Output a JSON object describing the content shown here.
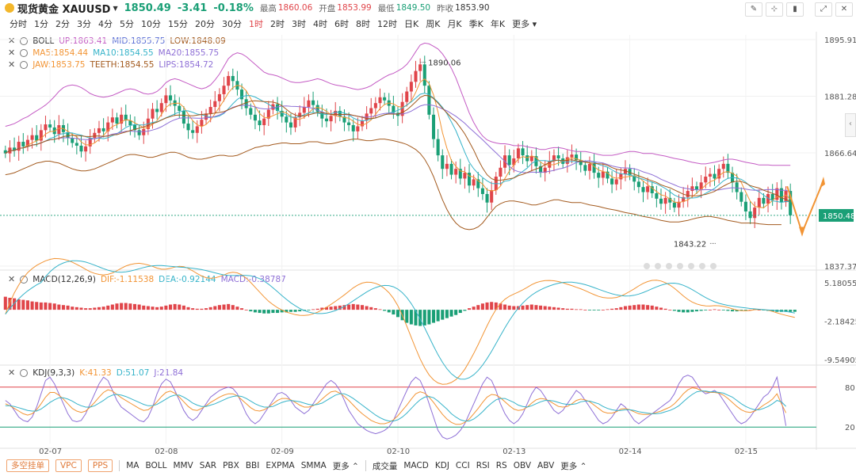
{
  "header": {
    "title": "现货黄金 XAUUSD",
    "price": "1850.49",
    "change": "-3.41",
    "change_pct": "-0.18%",
    "high_label": "最高",
    "high": "1860.06",
    "open_label": "开盘",
    "open": "1853.99",
    "low_label": "最低",
    "low": "1849.50",
    "prev_label": "昨收",
    "prev": "1853.90"
  },
  "timeframes": [
    "分时",
    "1分",
    "2分",
    "3分",
    "4分",
    "5分",
    "10分",
    "15分",
    "20分",
    "30分",
    "1时",
    "2时",
    "3时",
    "4时",
    "6时",
    "8时",
    "12时",
    "日K",
    "周K",
    "月K",
    "季K",
    "年K",
    "更多"
  ],
  "active_timeframe": "1时",
  "legend": {
    "boll": {
      "name": "BOLL",
      "up": "UP:1863.41",
      "mid": "MID:1855.75",
      "low": "LOW:1848.09"
    },
    "ma": {
      "ma5": "MA5:1854.44",
      "ma10": "MA10:1854.55",
      "ma20": "MA20:1855.75"
    },
    "alligator": {
      "jaw": "JAW:1853.75",
      "teeth": "TEETH:1854.55",
      "lips": "LIPS:1854.72"
    },
    "macd": {
      "name": "MACD(12,26,9)",
      "dif": "DIF:-1.11538",
      "dea": "DEA:-0.92144",
      "macd": "MACD:-0.38787"
    },
    "kdj": {
      "name": "KDJ(9,3,3)",
      "k": "K:41.33",
      "d": "D:51.07",
      "j": "J:21.84"
    }
  },
  "colors": {
    "up": "#e0454a",
    "down": "#1a9f76",
    "boll": "#c45bc4",
    "mid": "#5b6fd6",
    "lowband": "#a35a1e",
    "ma5": "#f29434",
    "ma10": "#36b3c9",
    "ma20": "#8e6fd6",
    "jaw": "#a35a1e",
    "teeth": "#c0a010",
    "lips": "#8e6fd6"
  },
  "chart_data": {
    "type": "candlestick",
    "y_ticks": [
      "1895.91",
      "1881.28",
      "1866.64",
      "1837.37"
    ],
    "ylim": [
      1837.37,
      1895.91
    ],
    "current_price_label": "1850.48",
    "current_price": 1850.48,
    "annotations": [
      {
        "text": "1890.06",
        "value": 1890.06
      },
      {
        "text": "1843.22",
        "value": 1843.22
      }
    ],
    "x_labels": [
      "02-07",
      "02-08",
      "02-09",
      "02-10",
      "02-13",
      "02-14",
      "02-15"
    ],
    "close": [
      1866.5,
      1868.0,
      1867.2,
      1869.5,
      1868.3,
      1870.0,
      1871.2,
      1869.8,
      1872.5,
      1874.0,
      1873.2,
      1871.5,
      1873.8,
      1872.0,
      1870.5,
      1869.2,
      1868.5,
      1867.0,
      1868.3,
      1870.5,
      1871.8,
      1873.0,
      1872.2,
      1874.5,
      1875.8,
      1874.2,
      1876.5,
      1875.0,
      1873.8,
      1872.5,
      1871.2,
      1872.8,
      1875.5,
      1878.0,
      1877.2,
      1879.5,
      1881.5,
      1880.2,
      1878.8,
      1877.5,
      1874.2,
      1872.5,
      1871.8,
      1873.5,
      1875.2,
      1876.8,
      1878.5,
      1880.0,
      1881.8,
      1884.0,
      1886.5,
      1885.2,
      1883.0,
      1880.5,
      1878.2,
      1876.5,
      1875.0,
      1873.8,
      1875.5,
      1877.8,
      1879.2,
      1877.5,
      1876.0,
      1874.5,
      1873.2,
      1875.8,
      1877.0,
      1878.5,
      1880.2,
      1879.0,
      1877.2,
      1875.5,
      1874.8,
      1876.2,
      1877.5,
      1876.0,
      1874.5,
      1873.8,
      1872.2,
      1873.5,
      1875.0,
      1876.8,
      1878.2,
      1879.5,
      1881.0,
      1880.2,
      1878.8,
      1877.0,
      1876.2,
      1879.8,
      1882.5,
      1885.0,
      1887.8,
      1889.5,
      1884.0,
      1876.5,
      1870.2,
      1866.0,
      1862.5,
      1863.8,
      1861.0,
      1862.5,
      1860.0,
      1861.5,
      1858.2,
      1859.8,
      1857.5,
      1856.0,
      1853.8,
      1857.0,
      1860.5,
      1862.8,
      1866.0,
      1863.5,
      1865.2,
      1867.8,
      1866.0,
      1864.5,
      1865.8,
      1863.2,
      1861.5,
      1862.8,
      1864.5,
      1866.0,
      1865.2,
      1863.8,
      1865.5,
      1866.2,
      1864.8,
      1863.5,
      1862.0,
      1863.8,
      1861.5,
      1860.2,
      1861.8,
      1860.0,
      1858.5,
      1859.8,
      1861.2,
      1862.5,
      1860.8,
      1859.2,
      1857.8,
      1856.5,
      1858.0,
      1856.2,
      1854.8,
      1853.5,
      1855.0,
      1853.8,
      1852.5,
      1854.0,
      1855.2,
      1856.8,
      1858.0,
      1857.2,
      1859.0,
      1860.5,
      1861.2,
      1860.0,
      1862.5,
      1863.8,
      1861.5,
      1859.0,
      1856.5,
      1854.0,
      1851.5,
      1849.8,
      1852.5,
      1855.0,
      1853.5,
      1856.0,
      1854.5,
      1857.5,
      1853.9,
      1856.8,
      1850.5
    ],
    "boll_up": [
      1873.5,
      1873.8,
      1874.2,
      1874.8,
      1875.5,
      1876.0,
      1876.8,
      1877.5,
      1878.2,
      1879.0,
      1880.0,
      1881.2,
      1882.5,
      1883.5,
      1884.0,
      1884.2,
      1884.0,
      1883.5,
      1882.8,
      1882.0,
      1881.5,
      1881.2,
      1881.0,
      1881.2,
      1881.5,
      1882.0,
      1882.5,
      1883.0,
      1883.2,
      1883.0,
      1882.5,
      1882.0,
      1881.8,
      1882.0,
      1882.5,
      1883.5,
      1884.8,
      1885.5,
      1885.8,
      1885.5,
      1885.0,
      1884.5,
      1884.0,
      1883.5,
      1883.2,
      1883.5,
      1884.2,
      1885.5,
      1887.0,
      1889.0,
      1891.0,
      1892.0,
      1892.5,
      1892.2,
      1891.5,
      1890.5,
      1889.5,
      1888.5,
      1887.5,
      1887.0,
      1886.8,
      1886.5,
      1886.0,
      1885.5,
      1885.0,
      1884.8,
      1884.8,
      1885.0,
      1885.2,
      1885.5,
      1885.8,
      1885.5,
      1885.0,
      1884.5,
      1884.2,
      1884.0,
      1883.8,
      1883.5,
      1883.2,
      1883.0,
      1883.2,
      1883.5,
      1884.0,
      1884.8,
      1885.5,
      1886.2,
      1886.8,
      1887.2,
      1887.8,
      1888.5,
      1889.5,
      1891.0,
      1892.8,
      1894.5,
      1895.0,
      1894.8,
      1894.2,
      1893.5,
      1892.2,
      1890.5,
      1888.5,
      1886.0,
      1883.0,
      1880.0,
      1877.0,
      1874.5,
      1872.5,
      1871.0,
      1870.0,
      1869.5,
      1869.2,
      1869.0,
      1869.0,
      1868.8,
      1868.5,
      1868.5,
      1868.5,
      1868.2,
      1868.0,
      1867.8,
      1867.5,
      1867.5,
      1867.8,
      1868.0,
      1868.0,
      1867.8,
      1867.5,
      1867.2,
      1867.0,
      1867.0,
      1867.0,
      1866.8,
      1866.5,
      1866.2,
      1866.0,
      1866.0,
      1866.0,
      1866.2,
      1866.5,
      1866.8,
      1867.0,
      1867.0,
      1866.8,
      1866.5,
      1866.5,
      1866.5,
      1866.2,
      1866.0,
      1865.8,
      1865.5,
      1865.2,
      1865.0,
      1864.8,
      1864.5,
      1864.2,
      1864.0,
      1863.8,
      1863.8,
      1864.0,
      1864.2,
      1864.5,
      1864.8,
      1865.0,
      1865.0,
      1864.8,
      1864.5,
      1864.2,
      1864.0,
      1863.8,
      1863.5,
      1863.5,
      1863.5,
      1863.4,
      1863.4,
      1863.4,
      1863.4,
      1863.4
    ],
    "boll_low": [
      1861.0,
      1861.2,
      1861.5,
      1862.0,
      1862.5,
      1863.0,
      1863.5,
      1864.0,
      1864.2,
      1864.5,
      1864.5,
      1864.2,
      1864.0,
      1863.5,
      1863.0,
      1862.5,
      1862.2,
      1862.0,
      1862.0,
      1862.2,
      1862.5,
      1863.0,
      1863.5,
      1864.0,
      1864.5,
      1865.0,
      1865.5,
      1866.0,
      1866.2,
      1866.2,
      1866.0,
      1865.8,
      1865.5,
      1865.5,
      1865.8,
      1866.2,
      1866.5,
      1866.8,
      1866.8,
      1866.5,
      1866.0,
      1865.5,
      1865.2,
      1865.0,
      1865.0,
      1865.2,
      1865.5,
      1865.8,
      1866.0,
      1866.0,
      1865.8,
      1865.8,
      1866.0,
      1866.5,
      1867.0,
      1867.5,
      1868.0,
      1868.2,
      1868.5,
      1868.5,
      1868.8,
      1869.0,
      1869.2,
      1869.2,
      1869.0,
      1869.0,
      1869.0,
      1869.2,
      1869.5,
      1869.5,
      1869.5,
      1869.2,
      1869.0,
      1869.0,
      1869.2,
      1869.5,
      1869.8,
      1870.0,
      1870.2,
      1870.2,
      1870.0,
      1869.8,
      1869.8,
      1870.0,
      1870.2,
      1870.2,
      1870.0,
      1869.8,
      1869.5,
      1869.2,
      1868.8,
      1868.2,
      1867.5,
      1866.5,
      1865.0,
      1863.0,
      1860.5,
      1857.5,
      1854.5,
      1852.0,
      1850.0,
      1848.5,
      1847.5,
      1847.0,
      1846.8,
      1847.0,
      1847.5,
      1848.5,
      1850.0,
      1851.5,
      1852.8,
      1853.5,
      1854.0,
      1854.2,
      1854.2,
      1854.0,
      1853.8,
      1853.5,
      1853.2,
      1853.2,
      1853.5,
      1853.8,
      1854.2,
      1854.5,
      1854.5,
      1854.2,
      1854.0,
      1853.8,
      1853.8,
      1853.8,
      1853.5,
      1853.2,
      1853.0,
      1852.8,
      1852.5,
      1852.2,
      1852.0,
      1851.8,
      1851.5,
      1851.2,
      1851.0,
      1850.8,
      1850.5,
      1850.2,
      1850.0,
      1849.8,
      1849.5,
      1849.2,
      1849.0,
      1848.8,
      1848.8,
      1848.8,
      1849.0,
      1849.2,
      1849.5,
      1849.8,
      1850.0,
      1850.2,
      1850.2,
      1850.0,
      1849.8,
      1849.5,
      1849.2,
      1849.0,
      1848.8,
      1848.5,
      1848.5,
      1848.5,
      1848.5,
      1848.3,
      1848.2,
      1848.1,
      1848.1,
      1848.1,
      1848.1
    ],
    "macd_hist": [
      2.5,
      2.3,
      2.2,
      2.0,
      1.9,
      1.8,
      1.6,
      1.5,
      1.4,
      1.4,
      1.3,
      1.2,
      1.0,
      0.9,
      0.8,
      0.6,
      0.5,
      0.4,
      0.3,
      0.3,
      0.4,
      0.5,
      0.6,
      0.8,
      1.0,
      1.2,
      1.3,
      1.3,
      1.2,
      1.1,
      1.0,
      0.8,
      0.7,
      0.6,
      0.5,
      0.6,
      0.8,
      1.0,
      1.1,
      1.0,
      0.8,
      0.5,
      0.3,
      0.2,
      0.2,
      0.3,
      0.5,
      0.7,
      0.9,
      1.0,
      1.1,
      0.9,
      0.6,
      0.3,
      0.0,
      -0.3,
      -0.5,
      -0.6,
      -0.7,
      -0.7,
      -0.6,
      -0.6,
      -0.5,
      -0.5,
      -0.4,
      -0.4,
      -0.3,
      -0.2,
      -0.1,
      0.1,
      0.2,
      0.4,
      0.5,
      0.6,
      0.7,
      0.8,
      0.9,
      1.0,
      1.1,
      1.0,
      0.9,
      0.7,
      0.5,
      0.3,
      0.1,
      -0.2,
      -0.5,
      -0.9,
      -1.4,
      -2.0,
      -2.5,
      -2.8,
      -3.0,
      -3.1,
      -3.0,
      -2.8,
      -2.5,
      -2.2,
      -1.9,
      -1.6,
      -1.3,
      -1.0,
      -0.6,
      -0.2,
      0.3,
      0.6,
      0.9,
      1.2,
      1.4,
      1.5,
      1.4,
      1.2,
      1.0,
      0.8,
      0.7,
      0.7,
      0.8,
      0.9,
      1.0,
      0.9,
      0.8,
      0.7,
      0.6,
      0.5,
      0.4,
      0.3,
      0.2,
      0.2,
      0.1,
      0.1,
      0.0,
      -0.1,
      -0.1,
      -0.1,
      0.0,
      0.1,
      0.2,
      0.3,
      0.5,
      0.7,
      0.8,
      0.9,
      1.0,
      1.0,
      0.9,
      0.8,
      0.6,
      0.4,
      0.2,
      0.0,
      -0.2,
      -0.4,
      -0.5,
      -0.5,
      -0.4,
      -0.3,
      -0.2,
      -0.1,
      0.0,
      0.1,
      0.0,
      -0.1,
      -0.2,
      -0.3,
      -0.3,
      -0.2,
      -0.1,
      0.0,
      0.1,
      0.0,
      -0.1,
      -0.2,
      -0.3,
      -0.4,
      -0.4,
      -0.4,
      -0.4,
      -0.39
    ],
    "macd_ticks": [
      "5.18055",
      "-2.18425",
      "-9.54905"
    ],
    "macd_ylim": [
      -9.54905,
      5.18055
    ],
    "kdj_ticks": [
      "80",
      "20"
    ],
    "kdj_ylim": [
      0,
      100
    ],
    "j_series": [
      60,
      55,
      45,
      35,
      30,
      28,
      35,
      50,
      70,
      90,
      95,
      85,
      70,
      55,
      40,
      30,
      28,
      30,
      40,
      55,
      70,
      85,
      95,
      90,
      75,
      60,
      50,
      45,
      40,
      35,
      30,
      28,
      35,
      50,
      70,
      85,
      92,
      88,
      75,
      60,
      45,
      35,
      30,
      35,
      45,
      55,
      65,
      70,
      75,
      78,
      80,
      78,
      70,
      55,
      40,
      30,
      25,
      30,
      40,
      50,
      60,
      70,
      72,
      68,
      60,
      50,
      45,
      40,
      45,
      55,
      65,
      75,
      85,
      90,
      85,
      75,
      60,
      45,
      35,
      25,
      20,
      15,
      12,
      10,
      12,
      15,
      20,
      30,
      45,
      60,
      75,
      88,
      95,
      90,
      75,
      55,
      35,
      15,
      5,
      2,
      4,
      8,
      15,
      25,
      40,
      55,
      70,
      85,
      95,
      90,
      75,
      55,
      40,
      30,
      25,
      30,
      40,
      55,
      70,
      80,
      75,
      65,
      55,
      45,
      40,
      45,
      55,
      65,
      75,
      70,
      60,
      50,
      40,
      30,
      25,
      28,
      35,
      45,
      55,
      50,
      40,
      30,
      25,
      30,
      35,
      40,
      45,
      50,
      55,
      60,
      70,
      85,
      95,
      98,
      95,
      85,
      75,
      70,
      72,
      75,
      70,
      60,
      50,
      40,
      30,
      25,
      28,
      35,
      45,
      55,
      65,
      70,
      80,
      95,
      60,
      21.84
    ],
    "k_series": [
      55,
      52,
      48,
      44,
      40,
      38,
      40,
      46,
      55,
      65,
      72,
      72,
      68,
      62,
      55,
      48,
      44,
      42,
      44,
      50,
      57,
      65,
      72,
      76,
      74,
      69,
      64,
      60,
      56,
      52,
      48,
      45,
      46,
      51,
      58,
      66,
      72,
      74,
      71,
      65,
      58,
      51,
      46,
      45,
      48,
      52,
      57,
      61,
      65,
      68,
      70,
      70,
      67,
      61,
      55,
      49,
      45,
      44,
      46,
      50,
      55,
      60,
      63,
      63,
      61,
      57,
      53,
      50,
      50,
      52,
      56,
      62,
      68,
      73,
      74,
      71,
      66,
      60,
      53,
      46,
      40,
      35,
      30,
      27,
      25,
      25,
      27,
      31,
      37,
      45,
      53,
      62,
      70,
      73,
      71,
      65,
      57,
      48,
      39,
      32,
      27,
      24,
      24,
      27,
      32,
      40,
      48,
      57,
      65,
      69,
      68,
      64,
      58,
      52,
      47,
      45,
      46,
      50,
      56,
      61,
      63,
      62,
      59,
      55,
      51,
      50,
      51,
      55,
      60,
      62,
      61,
      58,
      53,
      48,
      43,
      41,
      41,
      43,
      47,
      48,
      46,
      43,
      40,
      39,
      39,
      40,
      42,
      44,
      47,
      50,
      55,
      62,
      70,
      76,
      79,
      78,
      75,
      73,
      72,
      72,
      71,
      68,
      63,
      57,
      51,
      46,
      43,
      42,
      44,
      48,
      53,
      57,
      62,
      70,
      55,
      41.33
    ],
    "d_series": [
      52,
      52,
      51,
      49,
      47,
      45,
      44,
      44,
      47,
      52,
      57,
      61,
      64,
      64,
      62,
      59,
      55,
      52,
      50,
      50,
      52,
      56,
      60,
      65,
      68,
      69,
      68,
      66,
      63,
      60,
      57,
      54,
      52,
      52,
      54,
      58,
      62,
      66,
      68,
      68,
      65,
      61,
      56,
      53,
      51,
      51,
      53,
      55,
      58,
      61,
      64,
      66,
      67,
      66,
      63,
      59,
      55,
      52,
      50,
      50,
      51,
      54,
      57,
      59,
      60,
      59,
      58,
      56,
      54,
      53,
      54,
      56,
      60,
      64,
      68,
      70,
      70,
      67,
      63,
      58,
      53,
      48,
      43,
      38,
      34,
      31,
      29,
      29,
      31,
      35,
      41,
      48,
      55,
      61,
      65,
      66,
      64,
      59,
      53,
      47,
      40,
      35,
      31,
      29,
      29,
      32,
      37,
      43,
      50,
      56,
      61,
      63,
      63,
      60,
      57,
      53,
      51,
      50,
      52,
      55,
      58,
      60,
      60,
      59,
      57,
      55,
      54,
      54,
      55,
      58,
      59,
      59,
      57,
      55,
      51,
      48,
      46,
      45,
      45,
      46,
      46,
      45,
      43,
      42,
      41,
      40,
      40,
      41,
      43,
      45,
      48,
      52,
      58,
      64,
      69,
      73,
      74,
      74,
      73,
      73,
      72,
      71,
      68,
      65,
      60,
      55,
      51,
      48,
      46,
      46,
      48,
      51,
      55,
      60,
      58,
      51.07
    ]
  },
  "bottom": {
    "tags": [
      "多空挂单",
      "VPC",
      "PPS"
    ],
    "main_inds": [
      "MA",
      "BOLL",
      "MMV",
      "SAR",
      "PBX",
      "BBI",
      "EXPMA",
      "SMMA",
      "更多"
    ],
    "sub_inds": [
      "成交量",
      "MACD",
      "KDJ",
      "CCI",
      "RSI",
      "RS",
      "OBV",
      "ABV",
      "更多"
    ]
  }
}
